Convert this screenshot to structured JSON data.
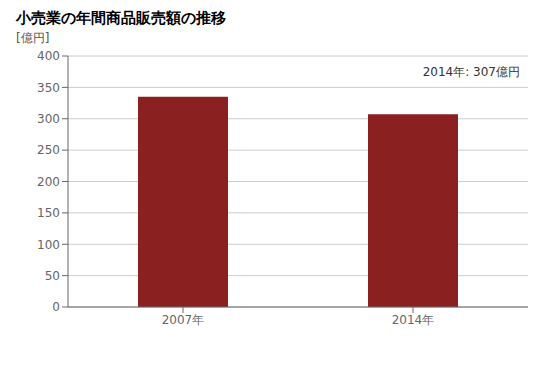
{
  "chart_data": {
    "type": "bar",
    "title": "小売業の年間商品販売額の推移",
    "ylabel": "[億円]",
    "categories": [
      "2007年",
      "2014年"
    ],
    "values": [
      335,
      307
    ],
    "color": "#8b2020",
    "annotation": "2014年: 307億円",
    "ylim": [
      0,
      400
    ],
    "yticks": [
      0,
      50,
      100,
      150,
      200,
      250,
      300,
      350,
      400
    ],
    "grid": true
  }
}
